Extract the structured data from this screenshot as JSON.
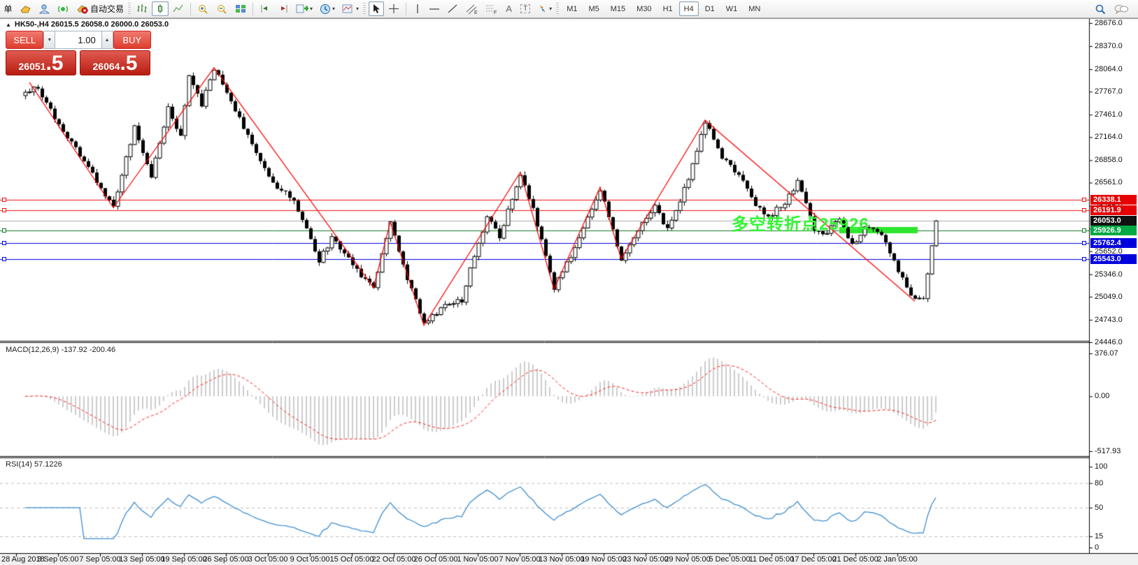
{
  "toolbar": {
    "order_label": "单",
    "autotrade_label": "自动交易",
    "timeframes": [
      "M1",
      "M5",
      "M15",
      "M30",
      "H1",
      "H4",
      "D1",
      "W1",
      "MN"
    ],
    "active_timeframe": "H4",
    "tool_A_label": "A",
    "tool_T_label": "T",
    "channel_sub": "E",
    "fibo_sub": "F"
  },
  "chart": {
    "title": "HK50-,H4 26015.5 26058.0 26000.0 26053.0",
    "symbol": "HK50-",
    "period": "H4",
    "open": "26015.5",
    "high": "26058.0",
    "low": "26000.0",
    "close": "26053.0"
  },
  "trade_panel": {
    "sell_label": "SELL",
    "buy_label": "BUY",
    "volume": "1.00",
    "sell_price_main": "26051",
    "sell_price_frac": ".5",
    "buy_price_main": "26064",
    "buy_price_frac": ".5"
  },
  "annotation": {
    "text": "多空转折点25926",
    "color": "#33f533"
  },
  "levels": [
    {
      "label": "26338.1",
      "price": 26338.1,
      "line_color": "#ee1111",
      "box_color": "#e60000",
      "style": "hline"
    },
    {
      "label": "26191.9",
      "price": 26191.9,
      "line_color": "#ee1111",
      "box_color": "#e60000",
      "style": "hline"
    },
    {
      "label": "26053.0",
      "price": 26053.0,
      "line_color": "#aaaaaa",
      "box_color": "#111111",
      "style": "current-price"
    },
    {
      "label": "25926.9",
      "price": 25926.9,
      "line_color": "#0f7a22",
      "box_color": "#00aa44",
      "style": "hline"
    },
    {
      "label": "25762.4",
      "price": 25762.4,
      "line_color": "#0000ee",
      "box_color": "#0000dd",
      "style": "hline"
    },
    {
      "label": "25543.0",
      "price": 25543.0,
      "line_color": "#0000ee",
      "box_color": "#0000dd",
      "style": "hline"
    }
  ],
  "price_scale": {
    "labels": [
      "28676.0",
      "28370.0",
      "28064.0",
      "27767.0",
      "27461.0",
      "27164.0",
      "26858.0",
      "26561.0",
      "26255.0",
      "25949.0",
      "25652.0",
      "25346.0",
      "25049.0",
      "24743.0",
      "24446.0"
    ],
    "max": 28676.0,
    "min": 24446.0
  },
  "macd": {
    "label": "MACD(12,26,9) -137.92 -200.46",
    "scale": [
      {
        "text": "376.07",
        "value": 376.07
      },
      {
        "text": "0.00",
        "value": 0
      },
      {
        "text": "-517.93",
        "value": -517.93
      }
    ]
  },
  "rsi": {
    "label": "RSI(14) 57.1226",
    "scale": [
      {
        "text": "100",
        "value": 100
      },
      {
        "text": "80",
        "value": 80
      },
      {
        "text": "50",
        "value": 50
      },
      {
        "text": "15",
        "value": 15
      },
      {
        "text": "0",
        "value": 0
      }
    ],
    "grid_levels": [
      80,
      50,
      15
    ]
  },
  "time_axis": [
    "28 Aug 2018",
    "3 Sep 05:00",
    "7 Sep 05:00",
    "13 Sep 05:00",
    "19 Sep 05:00",
    "26 Sep 05:00",
    "3 Oct 05:00",
    "9 Oct 05:00",
    "15 Oct 05:00",
    "22 Oct 05:00",
    "26 Oct 05:00",
    "1 Nov 05:00",
    "7 Nov 05:00",
    "13 Nov 05:00",
    "19 Nov 05:00",
    "23 Nov 05:00",
    "29 Nov 05:00",
    "5 Dec 05:00",
    "11 Dec 05:00",
    "17 Dec 05:00",
    "21 Dec 05:00",
    "2 Jan 05:00"
  ],
  "chart_data": {
    "type": "candlestick",
    "note": "values approximated from pixels; H4 candles synthesized along waypoints",
    "candle_count": 218,
    "price_waypoints": [
      [
        0,
        27730
      ],
      [
        2,
        27860
      ],
      [
        21,
        26230
      ],
      [
        26,
        27300
      ],
      [
        30,
        26650
      ],
      [
        34,
        27550
      ],
      [
        37,
        27180
      ],
      [
        39,
        27950
      ],
      [
        42,
        27590
      ],
      [
        45,
        28085
      ],
      [
        52,
        27300
      ],
      [
        59,
        26530
      ],
      [
        64,
        26340
      ],
      [
        70,
        25510
      ],
      [
        73,
        25840
      ],
      [
        79,
        25400
      ],
      [
        83,
        25170
      ],
      [
        87,
        26020
      ],
      [
        91,
        25300
      ],
      [
        95,
        24680
      ],
      [
        100,
        24950
      ],
      [
        104,
        25000
      ],
      [
        107,
        25600
      ],
      [
        110,
        26110
      ],
      [
        113,
        25850
      ],
      [
        118,
        26690
      ],
      [
        121,
        26200
      ],
      [
        126,
        25160
      ],
      [
        130,
        25600
      ],
      [
        137,
        26480
      ],
      [
        142,
        25560
      ],
      [
        146,
        25950
      ],
      [
        150,
        26250
      ],
      [
        153,
        25930
      ],
      [
        158,
        26600
      ],
      [
        162,
        27380
      ],
      [
        166,
        26900
      ],
      [
        170,
        26670
      ],
      [
        174,
        26250
      ],
      [
        177,
        26110
      ],
      [
        181,
        26300
      ],
      [
        184,
        26580
      ],
      [
        188,
        25950
      ],
      [
        190,
        25880
      ],
      [
        194,
        26050
      ],
      [
        197,
        25740
      ],
      [
        200,
        25950
      ],
      [
        204,
        25880
      ],
      [
        208,
        25370
      ],
      [
        212,
        24990
      ],
      [
        214,
        25050
      ],
      [
        217,
        26053
      ]
    ],
    "zigzag": [
      [
        1,
        27890
      ],
      [
        21,
        26230
      ],
      [
        45,
        28085
      ],
      [
        83,
        25170
      ],
      [
        87,
        26040
      ],
      [
        95,
        24670
      ],
      [
        118,
        26700
      ],
      [
        126,
        25150
      ],
      [
        137,
        26500
      ],
      [
        142,
        25550
      ],
      [
        162,
        27390
      ],
      [
        212,
        24990
      ]
    ],
    "last_close": 26053,
    "green_segment": {
      "price": 25926.9,
      "color": "#2ee62e"
    },
    "indicators": {
      "macd": [
        12,
        26,
        9
      ],
      "rsi": [
        14
      ]
    },
    "ylim": [
      24446,
      28676
    ],
    "macd_ylim": [
      -517.93,
      376.07
    ],
    "rsi_ylim": [
      0,
      100
    ]
  }
}
